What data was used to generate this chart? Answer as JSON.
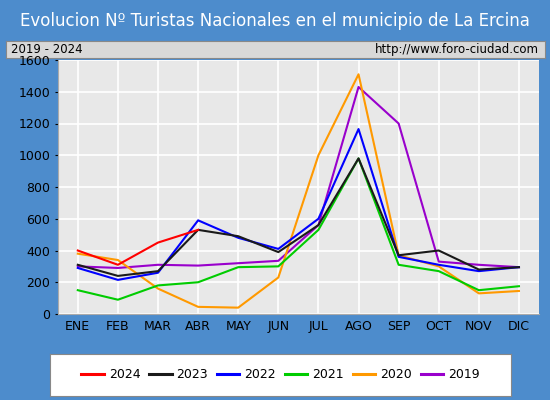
{
  "title": "Evolucion Nº Turistas Nacionales en el municipio de La Ercina",
  "subtitle_left": "2019 - 2024",
  "subtitle_right": "http://www.foro-ciudad.com",
  "x_labels": [
    "ENE",
    "FEB",
    "MAR",
    "ABR",
    "MAY",
    "JUN",
    "JUL",
    "AGO",
    "SEP",
    "OCT",
    "NOV",
    "DIC"
  ],
  "ylim": [
    0,
    1600
  ],
  "yticks": [
    0,
    200,
    400,
    600,
    800,
    1000,
    1200,
    1400,
    1600
  ],
  "series": {
    "2024": {
      "color": "#ff0000",
      "data": [
        400,
        310,
        450,
        530,
        null,
        null,
        null,
        null,
        null,
        null,
        null,
        null
      ]
    },
    "2023": {
      "color": "#1a1a1a",
      "data": [
        310,
        240,
        270,
        530,
        490,
        390,
        560,
        980,
        370,
        400,
        280,
        295
      ]
    },
    "2022": {
      "color": "#0000ff",
      "data": [
        290,
        215,
        260,
        590,
        480,
        410,
        600,
        1165,
        360,
        310,
        270,
        295
      ]
    },
    "2021": {
      "color": "#00cc00",
      "data": [
        150,
        90,
        180,
        200,
        295,
        300,
        530,
        980,
        310,
        270,
        150,
        175
      ]
    },
    "2020": {
      "color": "#ff9900",
      "data": [
        380,
        340,
        160,
        45,
        40,
        230,
        1000,
        1510,
        370,
        300,
        130,
        145
      ]
    },
    "2019": {
      "color": "#9900cc",
      "data": [
        300,
        290,
        310,
        305,
        320,
        335,
        560,
        1430,
        1200,
        330,
        310,
        295
      ]
    }
  },
  "title_bg_color": "#4d8ccc",
  "title_text_color": "#ffffff",
  "plot_bg_color": "#e8e8e8",
  "grid_color": "#ffffff",
  "border_color": "#4d8ccc",
  "subtitle_bg_color": "#d8d8d8",
  "title_fontsize": 12,
  "axis_fontsize": 9,
  "legend_order": [
    "2024",
    "2023",
    "2022",
    "2021",
    "2020",
    "2019"
  ]
}
